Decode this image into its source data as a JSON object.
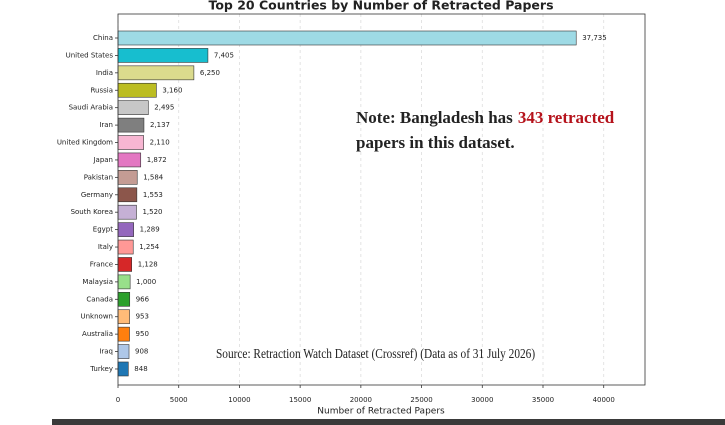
{
  "chart_data": {
    "type": "barh",
    "title": "Top 20 Countries by Number of Retracted Papers",
    "x_label": "Number of Retracted Papers",
    "categories": [
      "China",
      "United States",
      "India",
      "Russia",
      "Saudi Arabia",
      "Iran",
      "United Kingdom",
      "Japan",
      "Pakistan",
      "Germany",
      "South Korea",
      "Egypt",
      "Italy",
      "France",
      "Malaysia",
      "Canada",
      "Unknown",
      "Australia",
      "Iraq",
      "Turkey"
    ],
    "values": [
      37735,
      7405,
      6250,
      3160,
      2495,
      2137,
      2110,
      1872,
      1584,
      1553,
      1520,
      1289,
      1254,
      1128,
      1000,
      966,
      953,
      950,
      908,
      848
    ],
    "value_labels": [
      "37,735",
      "7,405",
      "6,250",
      "3,160",
      "2,495",
      "2,137",
      "2,110",
      "1,872",
      "1,584",
      "1,553",
      "1,520",
      "1,289",
      "1,254",
      "1,128",
      "1,000",
      "966",
      "953",
      "950",
      "908",
      "848"
    ],
    "colors": [
      "#9edae5",
      "#17becf",
      "#dbdb8d",
      "#bcbd22",
      "#c7c7c7",
      "#7f7f7f",
      "#f7b6d2",
      "#e377c2",
      "#c49c94",
      "#8c564b",
      "#c5b0d5",
      "#9467bd",
      "#ff9896",
      "#d62728",
      "#98df8a",
      "#2ca02c",
      "#ffbb78",
      "#ff7f0e",
      "#aec7e8",
      "#1f77b4"
    ],
    "xlim": [
      0,
      43400
    ],
    "xticks": [
      0,
      5000,
      10000,
      15000,
      20000,
      25000,
      30000,
      35000,
      40000
    ],
    "grid": true,
    "note": [
      "Note: Bangladesh has",
      "343 retracted",
      "papers in this dataset."
    ],
    "source": "Source: Retraction Watch Dataset (Crossref) (Data as of 31 July 2026)"
  }
}
